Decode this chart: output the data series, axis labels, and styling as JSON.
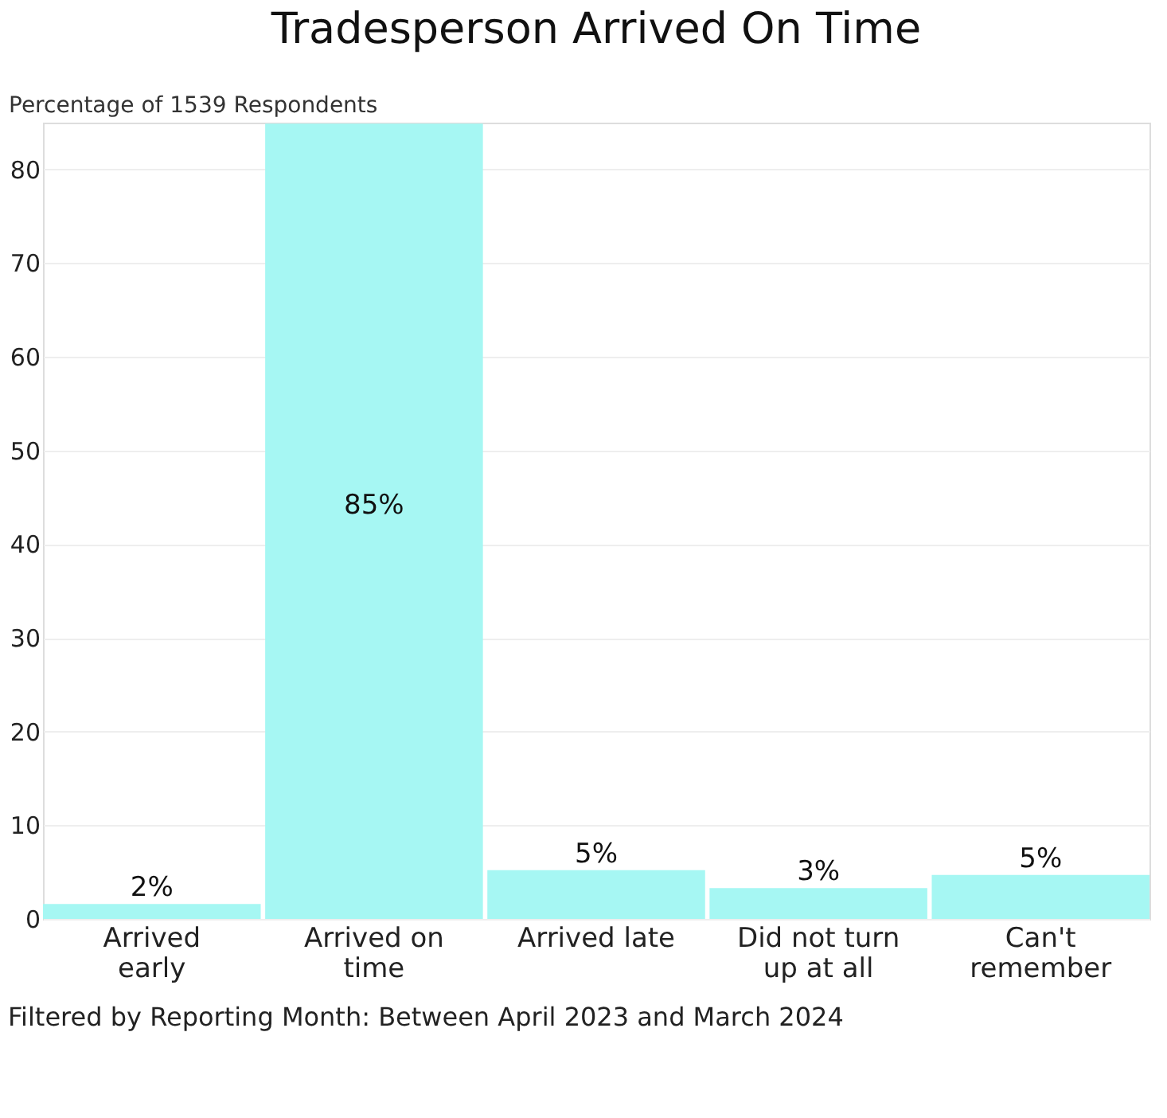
{
  "chart_data": {
    "type": "bar",
    "title": "Tradesperson Arrived On Time",
    "ylabel": "Percentage of 1539 Respondents",
    "categories": [
      "Arrived early",
      "Arrived on time",
      "Arrived late",
      "Did not turn up at all",
      "Can't remember"
    ],
    "values": [
      1.6,
      84.9,
      5.2,
      3.3,
      4.7
    ],
    "value_labels": [
      "2%",
      "85%",
      "5%",
      "3%",
      "5%"
    ],
    "color": "#a6f7f3",
    "ylim": [
      0,
      85
    ],
    "yticks": [
      0,
      10,
      20,
      30,
      40,
      50,
      60,
      70,
      80
    ],
    "grid": "y",
    "annotations": [
      "Filtered by Reporting Month: Between April 2023 and March 2024"
    ]
  }
}
